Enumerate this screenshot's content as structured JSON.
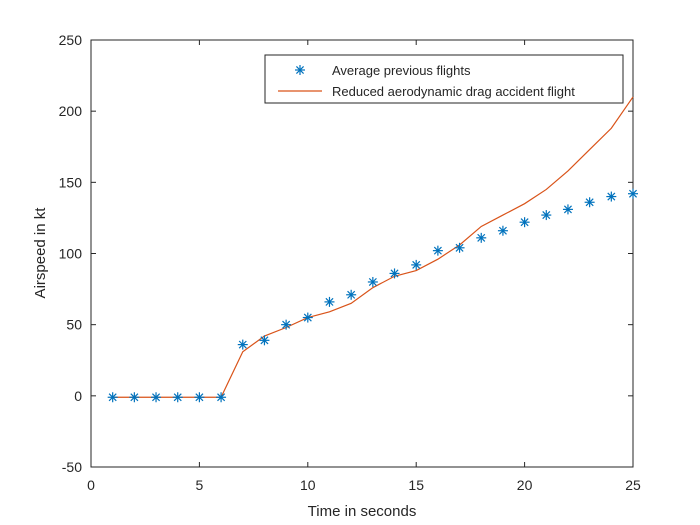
{
  "chart_data": {
    "type": "line",
    "xlabel": "Time in seconds",
    "ylabel": "Airspeed in kt",
    "xlim": [
      0,
      25
    ],
    "ylim": [
      -50,
      250
    ],
    "xticks": [
      0,
      5,
      10,
      15,
      20,
      25
    ],
    "yticks": [
      -50,
      0,
      50,
      100,
      150,
      200,
      250
    ],
    "grid": false,
    "legend_position": "top-right",
    "series": [
      {
        "name": "Average previous flights",
        "style": "markers",
        "marker": "asterisk",
        "color": "#0072BD",
        "x": [
          1,
          2,
          3,
          4,
          5,
          6,
          7,
          8,
          9,
          10,
          11,
          12,
          13,
          14,
          15,
          16,
          17,
          18,
          19,
          20,
          21,
          22,
          23,
          24,
          25
        ],
        "y": [
          -1,
          -1,
          -1,
          -1,
          -1,
          -1,
          36,
          39,
          50,
          55,
          66,
          71,
          80,
          86,
          92,
          102,
          104,
          111,
          116,
          122,
          127,
          131,
          136,
          140,
          142
        ]
      },
      {
        "name": "Reduced aerodynamic drag accident flight",
        "style": "line",
        "color": "#D95319",
        "x": [
          1,
          2,
          3,
          4,
          5,
          6,
          7,
          8,
          9,
          10,
          11,
          12,
          13,
          14,
          15,
          16,
          17,
          18,
          19,
          20,
          21,
          22,
          23,
          24,
          25
        ],
        "y": [
          -1,
          -1,
          -1,
          -1,
          -1,
          -1,
          31,
          42,
          48,
          55,
          59,
          65,
          76,
          84,
          88,
          96,
          106,
          119,
          127,
          135,
          145,
          158,
          173,
          188,
          210
        ]
      }
    ]
  }
}
